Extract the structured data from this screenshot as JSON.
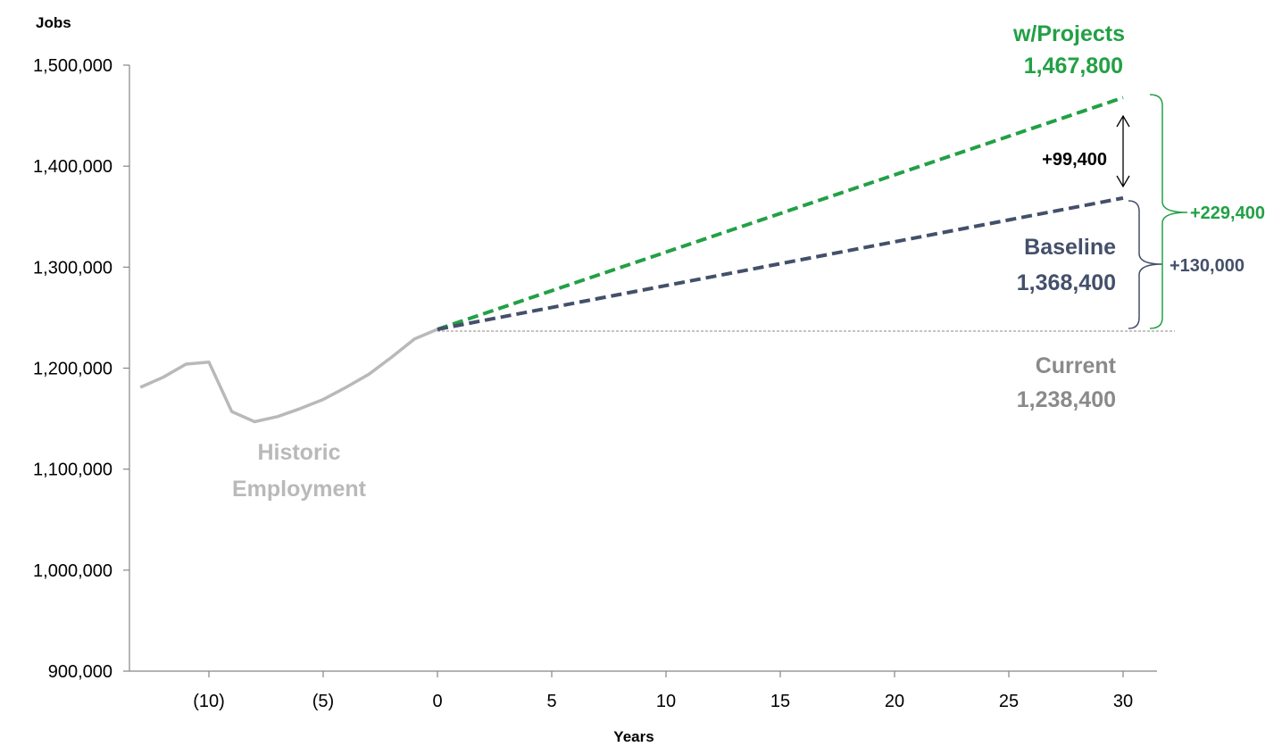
{
  "chart_data": {
    "type": "line",
    "xlabel": "Years",
    "ylabel": "Jobs",
    "xlim": [
      -13,
      31
    ],
    "ylim": [
      900000,
      1500000
    ],
    "x_ticks": [
      {
        "value": -10,
        "label": "(10)"
      },
      {
        "value": -5,
        "label": "(5)"
      },
      {
        "value": 0,
        "label": "0"
      },
      {
        "value": 5,
        "label": "5"
      },
      {
        "value": 10,
        "label": "10"
      },
      {
        "value": 15,
        "label": "15"
      },
      {
        "value": 20,
        "label": "20"
      },
      {
        "value": 25,
        "label": "25"
      },
      {
        "value": 30,
        "label": "30"
      }
    ],
    "y_ticks": [
      {
        "value": 900000,
        "label": "900,000"
      },
      {
        "value": 1000000,
        "label": "1,000,000"
      },
      {
        "value": 1100000,
        "label": "1,100,000"
      },
      {
        "value": 1200000,
        "label": "1,200,000"
      },
      {
        "value": 1300000,
        "label": "1,300,000"
      },
      {
        "value": 1400000,
        "label": "1,400,000"
      },
      {
        "value": 1500000,
        "label": "1,500,000"
      }
    ],
    "grid": false,
    "series": [
      {
        "key": "historic",
        "color": "#b9b9b9",
        "style": "solid",
        "points": [
          [
            -13,
            1181000
          ],
          [
            -12,
            1191000
          ],
          [
            -11,
            1204000
          ],
          [
            -10,
            1206000
          ],
          [
            -9,
            1157000
          ],
          [
            -8,
            1147000
          ],
          [
            -7,
            1152000
          ],
          [
            -6,
            1160000
          ],
          [
            -5,
            1169000
          ],
          [
            -4,
            1181000
          ],
          [
            -3,
            1194000
          ],
          [
            -2,
            1211000
          ],
          [
            -1,
            1229000
          ],
          [
            0,
            1238400
          ]
        ]
      },
      {
        "key": "projects",
        "color": "#22a045",
        "style": "dashed",
        "points": [
          [
            0,
            1238400
          ],
          [
            30,
            1467800
          ]
        ]
      },
      {
        "key": "baseline",
        "color": "#44506a",
        "style": "dashed",
        "points": [
          [
            0,
            1238400
          ],
          [
            30,
            1368400
          ]
        ]
      }
    ],
    "reference_line": {
      "value": 1238400,
      "color": "#888888"
    },
    "annotations": {
      "projects_label": "w/Projects",
      "projects_value": "1,467,800",
      "baseline_label": "Baseline",
      "baseline_value": "1,368,400",
      "current_label": "Current",
      "current_value": "1,238,400",
      "historic_line1": "Historic",
      "historic_line2": "Employment",
      "diff_projects_baseline": "+99,400",
      "diff_baseline_current": "+130,000",
      "diff_projects_current": "+229,400"
    },
    "colors": {
      "projects": "#22a045",
      "baseline": "#44506a",
      "current": "#8a8a8a",
      "historic": "#b9b9b9",
      "diff": "#000000"
    }
  }
}
